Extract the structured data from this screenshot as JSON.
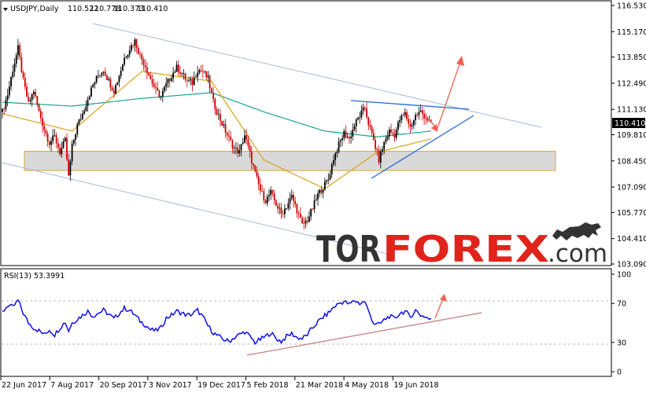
{
  "chart_data": [
    {
      "type": "candlestick",
      "header": {
        "symbol": "USDJPY,Daily",
        "open": "110.522",
        "high": "110.778",
        "low": "110.373",
        "close": "110.410"
      },
      "y_ticks": [
        "116.530",
        "115.170",
        "113.850",
        "112.490",
        "111.130",
        "109.810",
        "108.450",
        "107.090",
        "105.770",
        "104.410",
        "103.090"
      ],
      "ylim": [
        103.09,
        116.53
      ],
      "current_price": "110.410",
      "x_ticks": [
        "22 Jun 2017",
        "7 Aug 2017",
        "20 Sep 2017",
        "3 Nov 2017",
        "19 Dec 2017",
        "5 Feb 2018",
        "21 Mar 2018",
        "4 May 2018",
        "19 Jun 2018"
      ],
      "close_path": [
        [
          0,
          111.0
        ],
        [
          3,
          111.9
        ],
        [
          6,
          113.2
        ],
        [
          9,
          114.3
        ],
        [
          12,
          112.6
        ],
        [
          15,
          111.4
        ],
        [
          18,
          112.1
        ],
        [
          21,
          111.0
        ],
        [
          24,
          110.1
        ],
        [
          27,
          109.4
        ],
        [
          30,
          109.7
        ],
        [
          33,
          108.9
        ],
        [
          36,
          109.5
        ],
        [
          38,
          107.6
        ],
        [
          40,
          109.2
        ],
        [
          43,
          110.3
        ],
        [
          46,
          110.9
        ],
        [
          49,
          111.7
        ],
        [
          52,
          112.4
        ],
        [
          55,
          112.9
        ],
        [
          58,
          113.2
        ],
        [
          61,
          112.6
        ],
        [
          64,
          112.1
        ],
        [
          67,
          112.9
        ],
        [
          70,
          113.8
        ],
        [
          73,
          114.3
        ],
        [
          76,
          114.7
        ],
        [
          79,
          113.9
        ],
        [
          82,
          113.4
        ],
        [
          85,
          112.7
        ],
        [
          88,
          112.1
        ],
        [
          91,
          111.8
        ],
        [
          94,
          112.4
        ],
        [
          97,
          112.9
        ],
        [
          100,
          113.3
        ],
        [
          103,
          113.0
        ],
        [
          106,
          112.6
        ],
        [
          109,
          112.5
        ],
        [
          112,
          113.2
        ],
        [
          115,
          113.1
        ],
        [
          118,
          112.7
        ],
        [
          121,
          111.5
        ],
        [
          124,
          110.8
        ],
        [
          127,
          110.2
        ],
        [
          130,
          109.6
        ],
        [
          133,
          109.1
        ],
        [
          136,
          108.9
        ],
        [
          139,
          109.8
        ],
        [
          142,
          108.8
        ],
        [
          145,
          107.8
        ],
        [
          148,
          106.9
        ],
        [
          151,
          106.4
        ],
        [
          154,
          106.8
        ],
        [
          157,
          106.2
        ],
        [
          160,
          105.7
        ],
        [
          163,
          106.1
        ],
        [
          166,
          106.6
        ],
        [
          169,
          105.9
        ],
        [
          172,
          105.1
        ],
        [
          175,
          105.4
        ],
        [
          178,
          106.0
        ],
        [
          181,
          106.7
        ],
        [
          184,
          107.1
        ],
        [
          187,
          107.5
        ],
        [
          190,
          108.6
        ],
        [
          193,
          109.3
        ],
        [
          196,
          109.9
        ],
        [
          199,
          109.6
        ],
        [
          202,
          110.3
        ],
        [
          205,
          110.8
        ],
        [
          208,
          111.2
        ],
        [
          210,
          110.4
        ],
        [
          213,
          109.5
        ],
        [
          216,
          108.5
        ],
        [
          219,
          109.4
        ],
        [
          222,
          110.0
        ],
        [
          225,
          109.8
        ],
        [
          228,
          110.6
        ],
        [
          231,
          110.9
        ],
        [
          234,
          110.2
        ],
        [
          237,
          110.8
        ],
        [
          240,
          111.0
        ],
        [
          243,
          110.7
        ],
        [
          246,
          110.4
        ]
      ],
      "ma_fast_path": [
        [
          0,
          110.9
        ],
        [
          40,
          110.0
        ],
        [
          80,
          113.1
        ],
        [
          120,
          112.6
        ],
        [
          150,
          108.5
        ],
        [
          185,
          107.0
        ],
        [
          215,
          108.9
        ],
        [
          246,
          109.6
        ]
      ],
      "ma_slow_path": [
        [
          0,
          111.5
        ],
        [
          40,
          111.3
        ],
        [
          80,
          111.7
        ],
        [
          120,
          112.0
        ],
        [
          150,
          111.0
        ],
        [
          185,
          110.0
        ],
        [
          215,
          109.7
        ],
        [
          246,
          110.0
        ]
      ],
      "support_zone": [
        107.95,
        108.95
      ]
    },
    {
      "type": "line",
      "header": "RSI(13) 53.3991",
      "y_ticks": [
        "100",
        "70",
        "30",
        "0"
      ],
      "ylim": [
        0,
        100
      ],
      "levels": [
        30,
        70
      ],
      "values": [
        [
          0,
          61
        ],
        [
          3,
          68
        ],
        [
          6,
          66
        ],
        [
          9,
          73
        ],
        [
          12,
          60
        ],
        [
          15,
          50
        ],
        [
          18,
          45
        ],
        [
          21,
          42
        ],
        [
          24,
          38
        ],
        [
          27,
          43
        ],
        [
          30,
          38
        ],
        [
          33,
          45
        ],
        [
          36,
          51
        ],
        [
          38,
          42
        ],
        [
          40,
          50
        ],
        [
          43,
          54
        ],
        [
          46,
          58
        ],
        [
          49,
          62
        ],
        [
          52,
          57
        ],
        [
          55,
          60
        ],
        [
          58,
          63
        ],
        [
          61,
          59
        ],
        [
          64,
          54
        ],
        [
          67,
          60
        ],
        [
          70,
          65
        ],
        [
          73,
          63
        ],
        [
          76,
          58
        ],
        [
          79,
          52
        ],
        [
          82,
          48
        ],
        [
          85,
          43
        ],
        [
          88,
          42
        ],
        [
          91,
          45
        ],
        [
          94,
          55
        ],
        [
          97,
          58
        ],
        [
          100,
          62
        ],
        [
          103,
          60
        ],
        [
          106,
          58
        ],
        [
          109,
          59
        ],
        [
          112,
          63
        ],
        [
          115,
          56
        ],
        [
          118,
          47
        ],
        [
          121,
          40
        ],
        [
          124,
          36
        ],
        [
          127,
          33
        ],
        [
          130,
          31
        ],
        [
          133,
          35
        ],
        [
          136,
          38
        ],
        [
          139,
          41
        ],
        [
          142,
          36
        ],
        [
          145,
          30
        ],
        [
          148,
          33
        ],
        [
          151,
          36
        ],
        [
          154,
          40
        ],
        [
          157,
          34
        ],
        [
          160,
          31
        ],
        [
          163,
          36
        ],
        [
          166,
          39
        ],
        [
          169,
          35
        ],
        [
          172,
          34
        ],
        [
          175,
          38
        ],
        [
          178,
          45
        ],
        [
          181,
          51
        ],
        [
          184,
          56
        ],
        [
          187,
          60
        ],
        [
          190,
          66
        ],
        [
          193,
          70
        ],
        [
          196,
          72
        ],
        [
          199,
          69
        ],
        [
          202,
          73
        ],
        [
          205,
          70
        ],
        [
          208,
          72
        ],
        [
          210,
          62
        ],
        [
          213,
          50
        ],
        [
          216,
          48
        ],
        [
          219,
          53
        ],
        [
          222,
          57
        ],
        [
          225,
          54
        ],
        [
          228,
          60
        ],
        [
          231,
          62
        ],
        [
          234,
          56
        ],
        [
          237,
          63
        ],
        [
          240,
          58
        ],
        [
          243,
          56
        ],
        [
          246,
          53
        ]
      ]
    }
  ],
  "logo": {
    "part1": "TOR",
    "part2": "FOREX",
    "part3": ".com"
  },
  "colors": {
    "up": "#000000",
    "down": "#cc0000",
    "ma_fast": "#d9a21b",
    "ma_slow": "#1aa392",
    "channel": "#a8b8d8",
    "trend": "#2566d8",
    "arrow": "#f06050",
    "rsi": "#0000ee",
    "logo_light": "#333333",
    "logo_accent": "#e0241b"
  }
}
